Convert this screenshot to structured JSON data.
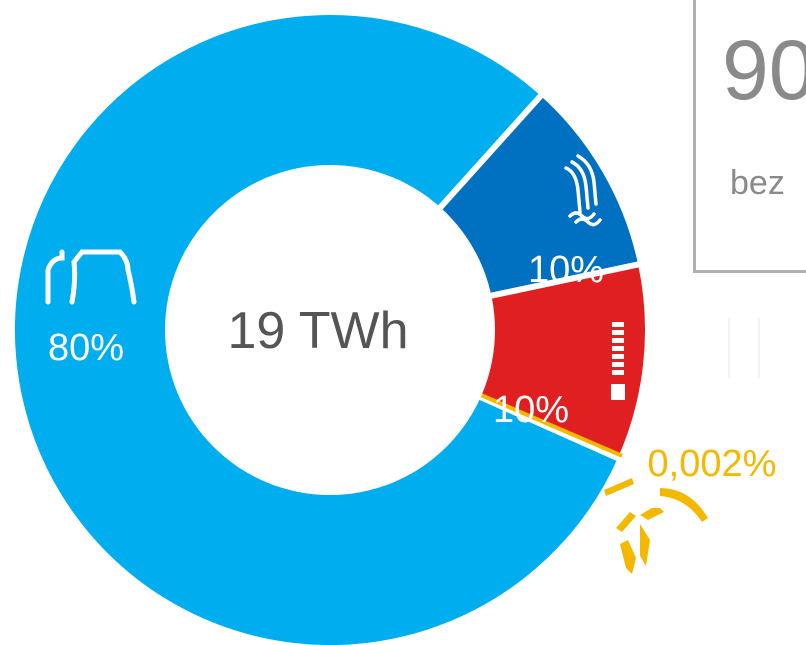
{
  "chart_data": {
    "type": "pie",
    "center_label": "19 TWh",
    "slices": [
      {
        "label": "80%",
        "value": 80,
        "color": "#00aeef",
        "icon": "cooling-tower-icon"
      },
      {
        "label": "10%",
        "value": 10,
        "color": "#0070c0",
        "icon": "hydro-waves-icon"
      },
      {
        "label": "10%",
        "value": 10,
        "color": "#e02020",
        "icon": "battery-level-icon"
      },
      {
        "label": "0,002%",
        "value": 0.002,
        "color": "#f5b800",
        "icon": "sun-rays-icon"
      }
    ]
  },
  "callout": {
    "value": "90",
    "caption": "bez"
  }
}
